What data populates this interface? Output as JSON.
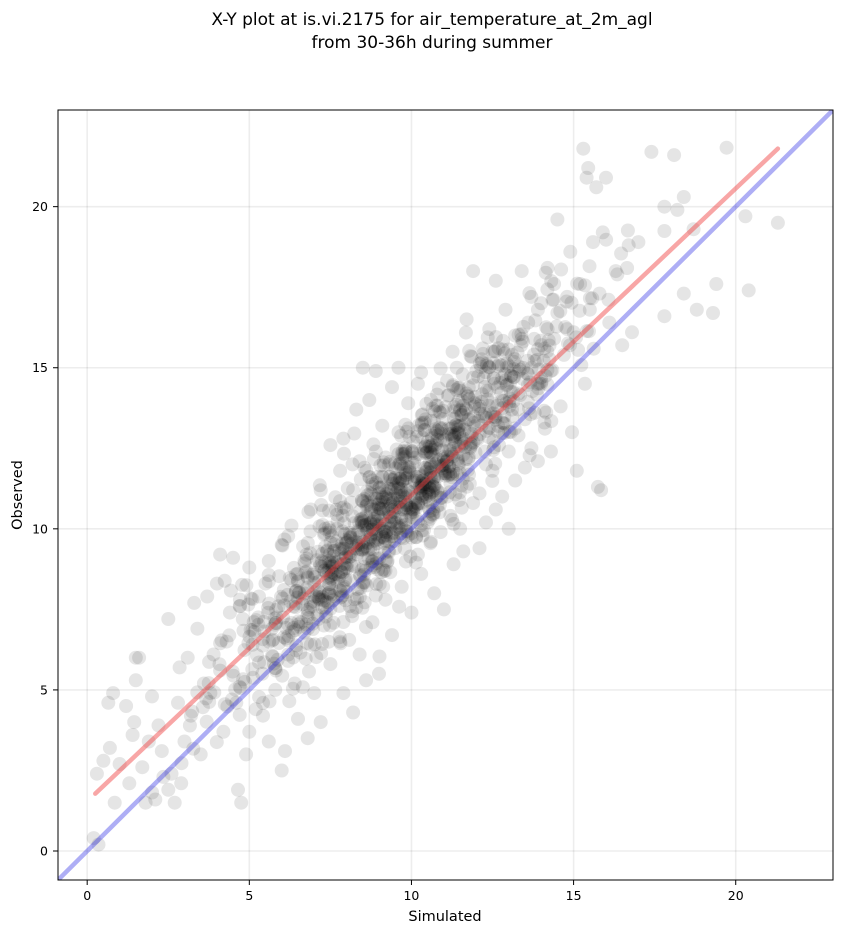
{
  "chart_data": {
    "type": "scatter",
    "title_lines": [
      "X-Y plot at is.vi.2175 for air_temperature_at_2m_agl",
      "from 30-36h during summer"
    ],
    "xlabel": "Simulated",
    "ylabel": "Observed",
    "xlim": [
      -0.9,
      23.0
    ],
    "ylim": [
      -0.9,
      23.0
    ],
    "xticks": [
      0,
      5,
      10,
      15,
      20
    ],
    "yticks": [
      0,
      5,
      10,
      15,
      20
    ],
    "grid": true,
    "point_color": "#000000",
    "point_opacity": 0.1,
    "series": [
      {
        "points": [
          [
            0.2,
            0.4
          ],
          [
            0.3,
            2.4
          ],
          [
            0.35,
            0.2
          ],
          [
            0.5,
            2.8
          ],
          [
            0.65,
            4.6
          ],
          [
            0.7,
            3.2
          ],
          [
            0.8,
            4.9
          ],
          [
            0.85,
            1.5
          ],
          [
            1.0,
            2.7
          ],
          [
            1.2,
            4.5
          ],
          [
            1.3,
            2.1
          ],
          [
            1.4,
            3.6
          ],
          [
            1.45,
            4.0
          ],
          [
            1.5,
            5.3
          ],
          [
            1.5,
            6.0
          ],
          [
            1.6,
            6.0
          ],
          [
            1.7,
            2.6
          ],
          [
            1.8,
            1.5
          ],
          [
            1.9,
            3.4
          ],
          [
            2.0,
            4.8
          ],
          [
            2.1,
            1.6
          ],
          [
            2.2,
            3.9
          ],
          [
            2.3,
            3.1
          ],
          [
            2.35,
            2.3
          ],
          [
            2.5,
            1.9
          ],
          [
            2.5,
            7.2
          ],
          [
            2.6,
            2.4
          ],
          [
            2.7,
            1.5
          ],
          [
            2.8,
            4.6
          ],
          [
            2.85,
            5.7
          ],
          [
            2.9,
            2.1
          ],
          [
            3.0,
            3.4
          ],
          [
            3.1,
            6.0
          ],
          [
            3.2,
            4.2
          ],
          [
            3.3,
            7.7
          ],
          [
            3.4,
            6.9
          ],
          [
            3.5,
            3.0
          ],
          [
            3.6,
            5.2
          ],
          [
            3.7,
            7.9
          ],
          [
            3.8,
            4.9
          ],
          [
            3.9,
            6.1
          ],
          [
            4.0,
            8.3
          ],
          [
            4.1,
            5.6
          ],
          [
            4.1,
            9.2
          ],
          [
            4.2,
            3.7
          ],
          [
            4.3,
            6.5
          ],
          [
            4.4,
            7.4
          ],
          [
            4.5,
            9.1
          ],
          [
            4.6,
            4.6
          ],
          [
            4.65,
            1.9
          ],
          [
            4.7,
            5.1
          ],
          [
            4.75,
            1.5
          ],
          [
            4.8,
            7.2
          ],
          [
            4.9,
            3.0
          ],
          [
            5.0,
            3.7
          ],
          [
            5.0,
            8.8
          ],
          [
            5.1,
            6.4
          ],
          [
            5.2,
            4.4
          ],
          [
            5.3,
            7.9
          ],
          [
            5.4,
            5.5
          ],
          [
            5.5,
            8.3
          ],
          [
            5.6,
            3.4
          ],
          [
            5.6,
            9.0
          ],
          [
            5.7,
            6.9
          ],
          [
            5.8,
            5.0
          ],
          [
            5.9,
            7.6
          ],
          [
            6.0,
            2.5
          ],
          [
            6.0,
            9.5
          ],
          [
            6.1,
            3.1
          ],
          [
            6.2,
            6.1
          ],
          [
            6.3,
            10.1
          ],
          [
            6.4,
            5.2
          ],
          [
            6.5,
            4.1
          ],
          [
            6.5,
            8.4
          ],
          [
            6.6,
            7.1
          ],
          [
            6.7,
            9.0
          ],
          [
            6.8,
            3.5
          ],
          [
            6.9,
            10.6
          ],
          [
            6.9,
            6.4
          ],
          [
            7.0,
            4.9
          ],
          [
            7.1,
            8.1
          ],
          [
            7.2,
            11.2
          ],
          [
            7.2,
            4.0
          ],
          [
            7.3,
            7.0
          ],
          [
            7.4,
            9.3
          ],
          [
            7.5,
            12.6
          ],
          [
            7.5,
            5.8
          ],
          [
            7.6,
            8.6
          ],
          [
            7.7,
            10.0
          ],
          [
            7.8,
            11.8
          ],
          [
            7.8,
            6.5
          ],
          [
            7.9,
            4.9
          ],
          [
            7.9,
            12.8
          ],
          [
            8.0,
            8.9
          ],
          [
            8.0,
            10.6
          ],
          [
            8.1,
            7.6
          ],
          [
            8.2,
            11.2
          ],
          [
            8.2,
            4.3
          ],
          [
            8.3,
            9.6
          ],
          [
            8.3,
            13.7
          ],
          [
            8.4,
            6.1
          ],
          [
            8.4,
            12.1
          ],
          [
            8.5,
            8.3
          ],
          [
            8.5,
            15.0
          ],
          [
            8.6,
            10.4
          ],
          [
            8.6,
            5.3
          ],
          [
            8.7,
            11.6
          ],
          [
            8.7,
            14.0
          ],
          [
            8.8,
            9.0
          ],
          [
            8.8,
            7.1
          ],
          [
            8.9,
            12.4
          ],
          [
            8.9,
            14.9
          ],
          [
            9.0,
            10.1
          ],
          [
            9.0,
            5.5
          ],
          [
            9.1,
            11.0
          ],
          [
            9.1,
            13.2
          ],
          [
            9.2,
            8.7
          ],
          [
            9.2,
            7.8
          ],
          [
            9.3,
            12.0
          ],
          [
            9.3,
            10.5
          ],
          [
            9.4,
            14.4
          ],
          [
            9.4,
            6.7
          ],
          [
            9.5,
            9.4
          ],
          [
            9.5,
            11.6
          ],
          [
            9.6,
            13.0
          ],
          [
            9.6,
            15.0
          ],
          [
            9.7,
            10.3
          ],
          [
            9.7,
            8.2
          ],
          [
            9.8,
            12.5
          ],
          [
            9.8,
            11.1
          ],
          [
            9.9,
            9.8
          ],
          [
            9.9,
            13.9
          ],
          [
            10.0,
            10.6
          ],
          [
            10.0,
            7.4
          ],
          [
            10.1,
            12.2
          ],
          [
            10.1,
            11.5
          ],
          [
            10.2,
            9.2
          ],
          [
            10.2,
            14.5
          ],
          [
            10.3,
            10.8
          ],
          [
            10.3,
            8.6
          ],
          [
            10.4,
            13.3
          ],
          [
            10.4,
            11.9
          ],
          [
            10.5,
            10.2
          ],
          [
            10.5,
            12.7
          ],
          [
            10.6,
            9.6
          ],
          [
            10.6,
            14.0
          ],
          [
            10.7,
            11.3
          ],
          [
            10.7,
            8.0
          ],
          [
            10.8,
            12.9
          ],
          [
            10.8,
            10.7
          ],
          [
            10.9,
            13.6
          ],
          [
            10.9,
            9.9
          ],
          [
            11.0,
            12.1
          ],
          [
            11.0,
            7.5
          ],
          [
            11.1,
            14.6
          ],
          [
            11.1,
            11.0
          ],
          [
            11.2,
            10.4
          ],
          [
            11.2,
            13.1
          ],
          [
            11.3,
            12.5
          ],
          [
            11.3,
            8.9
          ],
          [
            11.4,
            15.0
          ],
          [
            11.4,
            11.7
          ],
          [
            11.5,
            10.0
          ],
          [
            11.5,
            13.7
          ],
          [
            11.6,
            12.3
          ],
          [
            11.6,
            9.3
          ],
          [
            11.7,
            14.2
          ],
          [
            11.7,
            16.5
          ],
          [
            11.8,
            11.4
          ],
          [
            11.8,
            13.0
          ],
          [
            11.9,
            10.8
          ],
          [
            11.9,
            18.0
          ],
          [
            12.0,
            12.8
          ],
          [
            12.0,
            14.9
          ],
          [
            12.1,
            11.1
          ],
          [
            12.1,
            9.4
          ],
          [
            12.2,
            13.5
          ],
          [
            12.2,
            15.6
          ],
          [
            12.3,
            12.0
          ],
          [
            12.3,
            10.2
          ],
          [
            12.4,
            14.3
          ],
          [
            12.4,
            16.2
          ],
          [
            12.5,
            11.8
          ],
          [
            12.5,
            13.9
          ],
          [
            12.6,
            10.6
          ],
          [
            12.6,
            17.7
          ],
          [
            12.7,
            15.1
          ],
          [
            12.7,
            12.6
          ],
          [
            12.8,
            13.3
          ],
          [
            12.8,
            11.0
          ],
          [
            12.9,
            16.8
          ],
          [
            12.9,
            14.6
          ],
          [
            13.0,
            12.4
          ],
          [
            13.0,
            10.0
          ],
          [
            13.1,
            15.4
          ],
          [
            13.1,
            13.7
          ],
          [
            13.2,
            16.0
          ],
          [
            13.2,
            11.5
          ],
          [
            13.3,
            14.2
          ],
          [
            13.3,
            12.9
          ],
          [
            13.4,
            15.9
          ],
          [
            13.4,
            18.0
          ],
          [
            13.5,
            13.4
          ],
          [
            13.5,
            11.9
          ],
          [
            13.6,
            16.4
          ],
          [
            13.6,
            14.8
          ],
          [
            13.7,
            12.5
          ],
          [
            13.7,
            17.2
          ],
          [
            13.8,
            15.2
          ],
          [
            13.8,
            13.6
          ],
          [
            13.9,
            16.8
          ],
          [
            13.9,
            12.1
          ],
          [
            14.0,
            14.5
          ],
          [
            14.0,
            17.0
          ],
          [
            14.1,
            15.6
          ],
          [
            14.1,
            13.3
          ],
          [
            14.2,
            18.1
          ],
          [
            14.2,
            16.2
          ],
          [
            14.3,
            12.4
          ],
          [
            14.3,
            14.9
          ],
          [
            14.4,
            17.6
          ],
          [
            14.4,
            15.9
          ],
          [
            14.5,
            19.6
          ],
          [
            14.5,
            16.7
          ],
          [
            14.6,
            13.8
          ],
          [
            14.7,
            15.4
          ],
          [
            14.8,
            17.2
          ],
          [
            14.9,
            18.6
          ],
          [
            14.95,
            13.0
          ],
          [
            15.0,
            16.1
          ],
          [
            15.1,
            11.8
          ],
          [
            15.2,
            17.6
          ],
          [
            15.3,
            21.8
          ],
          [
            15.35,
            14.5
          ],
          [
            15.4,
            20.9
          ],
          [
            15.45,
            21.2
          ],
          [
            15.5,
            16.8
          ],
          [
            15.6,
            18.9
          ],
          [
            15.7,
            20.6
          ],
          [
            15.75,
            11.3
          ],
          [
            15.8,
            17.3
          ],
          [
            15.85,
            11.2
          ],
          [
            15.9,
            19.2
          ],
          [
            16.0,
            20.9
          ],
          [
            16.1,
            16.4
          ],
          [
            16.3,
            18.0
          ],
          [
            16.5,
            15.7
          ],
          [
            16.7,
            18.8
          ],
          [
            16.8,
            16.1
          ],
          [
            17.0,
            18.9
          ],
          [
            17.4,
            21.7
          ],
          [
            17.8,
            16.6
          ],
          [
            17.8,
            20.0
          ],
          [
            18.1,
            21.6
          ],
          [
            18.2,
            19.9
          ],
          [
            18.4,
            20.3
          ],
          [
            18.4,
            17.3
          ],
          [
            18.7,
            19.3
          ],
          [
            18.8,
            16.8
          ],
          [
            19.3,
            16.7
          ],
          [
            19.4,
            17.6
          ],
          [
            20.3,
            19.7
          ],
          [
            20.4,
            17.4
          ],
          [
            21.3,
            19.5
          ]
        ]
      }
    ],
    "cloud": {
      "count": 1100,
      "seed": 7,
      "center": [
        9.6,
        10.9
      ],
      "slope": 1.04,
      "spread_x": 2.6,
      "spread_resid": 1.05
    },
    "lines": [
      {
        "name": "fit",
        "color": "#f03a3a",
        "opacity": 0.45,
        "x": [
          0.25,
          21.3
        ],
        "y": [
          1.78,
          21.8
        ]
      },
      {
        "name": "identity",
        "color": "#2a2ae6",
        "opacity": 0.38,
        "x": [
          -0.9,
          23.0
        ],
        "y": [
          -0.9,
          23.0
        ]
      }
    ]
  }
}
